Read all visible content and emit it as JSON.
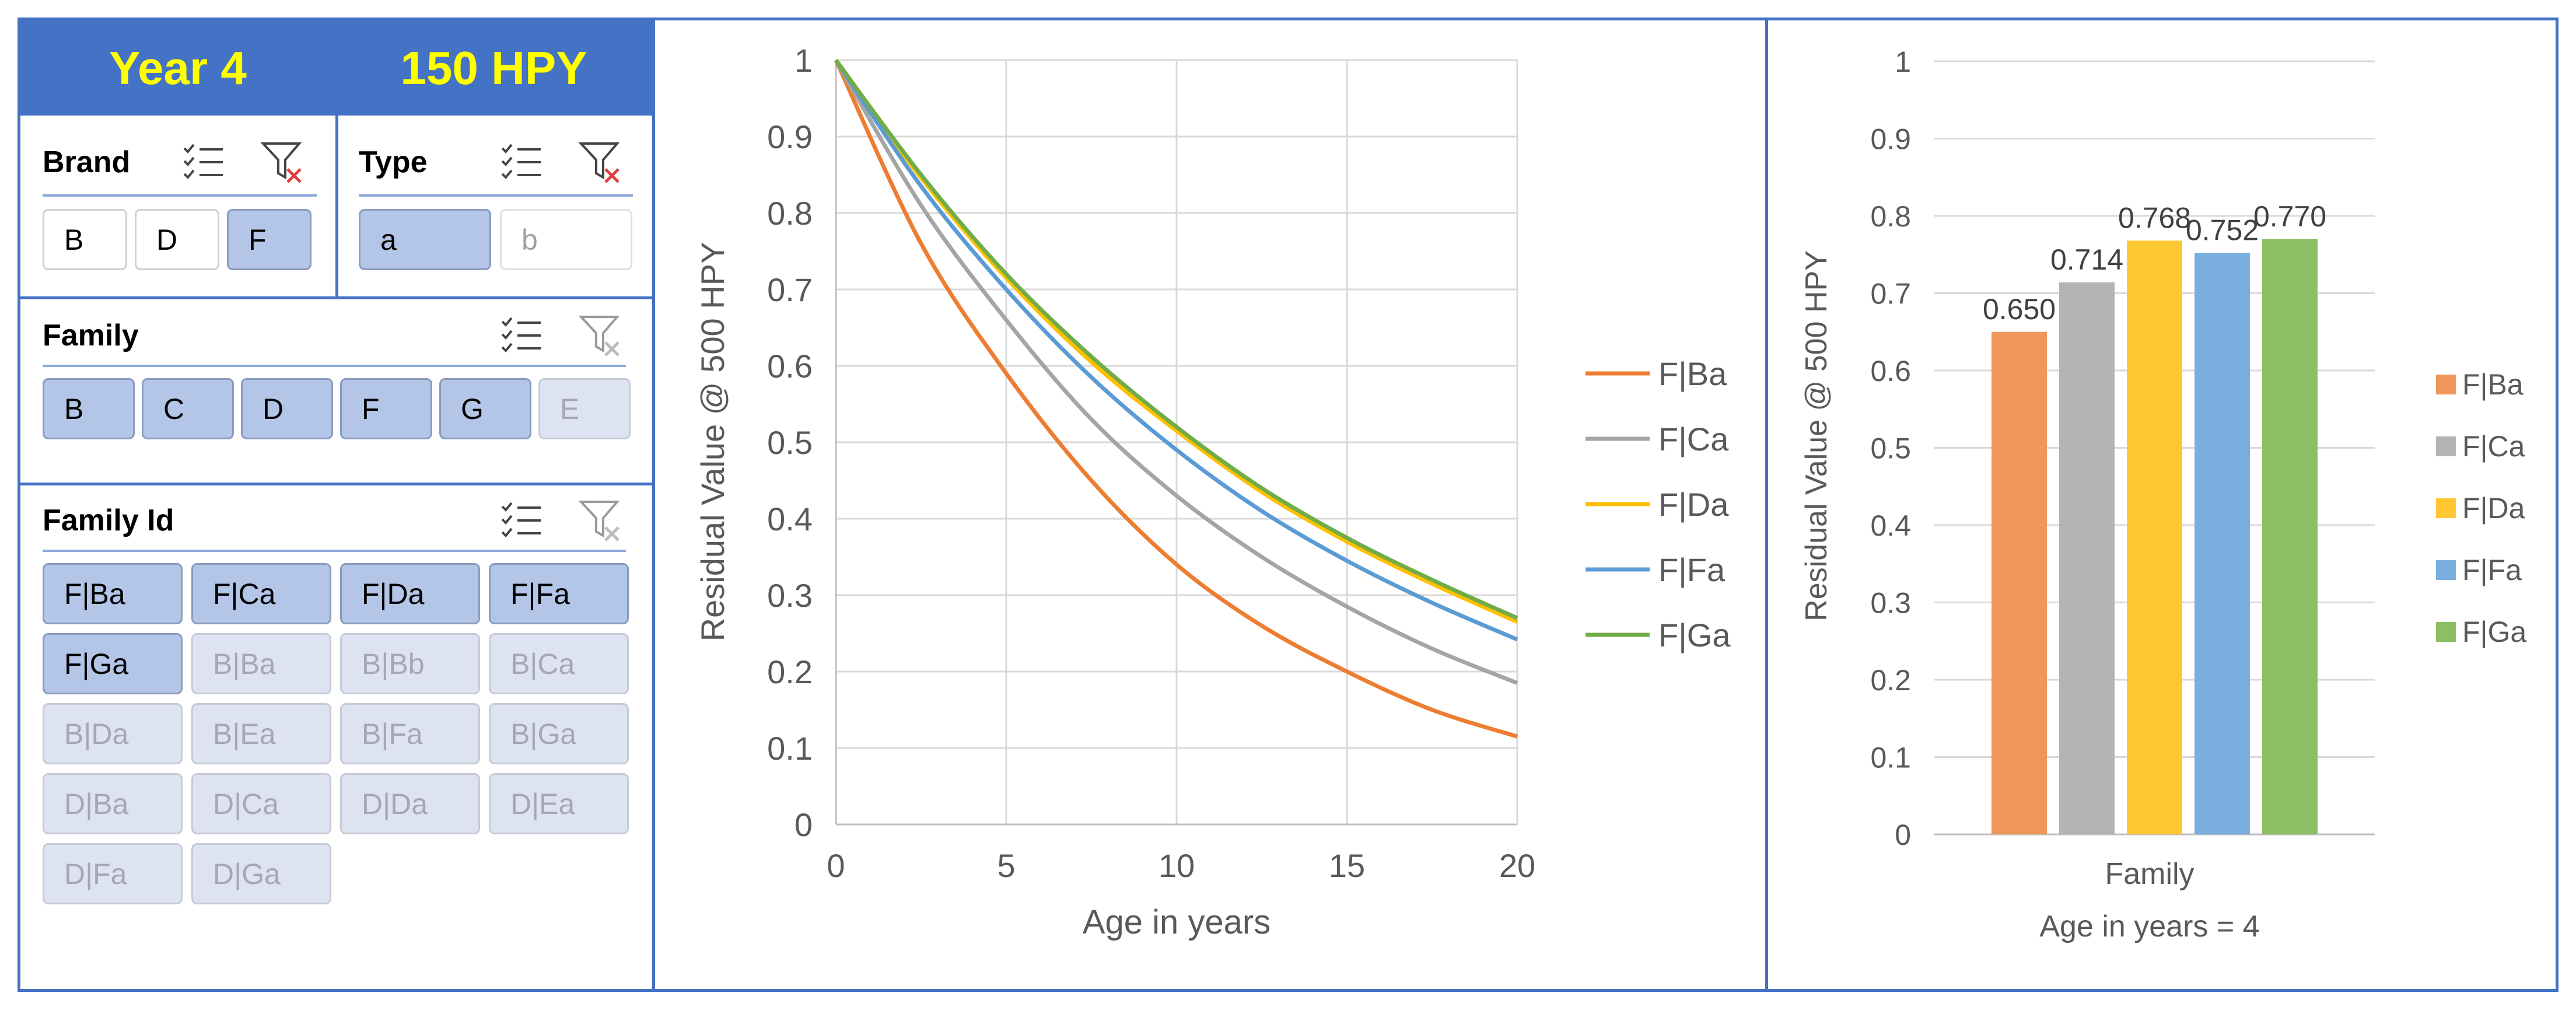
{
  "header": {
    "year_label": "Year 4",
    "hpy_label": "150 HPY"
  },
  "brand_slicer": {
    "title": "Brand",
    "items": [
      {
        "label": "B",
        "state": "unselected"
      },
      {
        "label": "D",
        "state": "unselected"
      },
      {
        "label": "F",
        "state": "selected"
      }
    ]
  },
  "type_slicer": {
    "title": "Type",
    "items": [
      {
        "label": "a",
        "state": "selected"
      },
      {
        "label": "b",
        "state": "disabled"
      }
    ]
  },
  "family_slicer": {
    "title": "Family",
    "items": [
      {
        "label": "B",
        "state": "selected"
      },
      {
        "label": "C",
        "state": "selected"
      },
      {
        "label": "D",
        "state": "selected"
      },
      {
        "label": "F",
        "state": "selected"
      },
      {
        "label": "G",
        "state": "selected"
      },
      {
        "label": "E",
        "state": "disabled"
      }
    ]
  },
  "family_id_slicer": {
    "title": "Family Id",
    "items": [
      {
        "label": "F|Ba",
        "state": "selected"
      },
      {
        "label": "F|Ca",
        "state": "selected"
      },
      {
        "label": "F|Da",
        "state": "selected"
      },
      {
        "label": "F|Fa",
        "state": "selected"
      },
      {
        "label": "F|Ga",
        "state": "selected"
      },
      {
        "label": "B|Ba",
        "state": "disabled"
      },
      {
        "label": "B|Bb",
        "state": "disabled"
      },
      {
        "label": "B|Ca",
        "state": "disabled"
      },
      {
        "label": "B|Da",
        "state": "disabled"
      },
      {
        "label": "B|Ea",
        "state": "disabled"
      },
      {
        "label": "B|Fa",
        "state": "disabled"
      },
      {
        "label": "B|Ga",
        "state": "disabled"
      },
      {
        "label": "D|Ba",
        "state": "disabled"
      },
      {
        "label": "D|Ca",
        "state": "disabled"
      },
      {
        "label": "D|Da",
        "state": "disabled"
      },
      {
        "label": "D|Ea",
        "state": "disabled"
      },
      {
        "label": "D|Fa",
        "state": "disabled"
      },
      {
        "label": "D|Ga",
        "state": "disabled"
      }
    ]
  },
  "icons": {
    "multi_select": "multi-select-icon",
    "clear_filter": "clear-filter-icon"
  },
  "colors": {
    "accent": "#4472c4",
    "header_text": "#ffff00",
    "F|Ba": "#ed7d31",
    "F|Ca": "#a5a5a5",
    "F|Da": "#ffc000",
    "F|Fa": "#5b9bd5",
    "F|Ga": "#70ad47",
    "bar_F|Ba": "#f0965a",
    "bar_F|Ca": "#b4b4b4",
    "bar_F|Da": "#ffc832",
    "bar_F|Fa": "#7aaede",
    "bar_F|Ga": "#8cbf64"
  },
  "chart_data": [
    {
      "type": "line",
      "title": "",
      "xlabel": "Age in years",
      "ylabel": "Residual Value @ 500 HPY",
      "xlim": [
        0,
        20
      ],
      "ylim": [
        0,
        1
      ],
      "x_ticks": [
        "0",
        "5",
        "10",
        "15",
        "20"
      ],
      "y_ticks": [
        "0",
        "0.1",
        "0.2",
        "0.3",
        "0.4",
        "0.5",
        "0.6",
        "0.7",
        "0.8",
        "0.9",
        "1"
      ],
      "grid": true,
      "legend": "right",
      "x": [
        0,
        2.5,
        5,
        7.5,
        10,
        12.5,
        15,
        17.5,
        20
      ],
      "series": [
        {
          "name": "F|Ba",
          "values": [
            1.0,
            0.76,
            0.59,
            0.45,
            0.34,
            0.26,
            0.2,
            0.15,
            0.115
          ]
        },
        {
          "name": "F|Ca",
          "values": [
            1.0,
            0.81,
            0.66,
            0.53,
            0.43,
            0.35,
            0.285,
            0.23,
            0.185
          ]
        },
        {
          "name": "F|Da",
          "values": [
            1.0,
            0.846,
            0.715,
            0.605,
            0.515,
            0.435,
            0.37,
            0.315,
            0.265
          ]
        },
        {
          "name": "F|Fa",
          "values": [
            1.0,
            0.835,
            0.7,
            0.585,
            0.49,
            0.41,
            0.345,
            0.29,
            0.242
          ]
        },
        {
          "name": "F|Ga",
          "values": [
            1.0,
            0.85,
            0.72,
            0.612,
            0.52,
            0.44,
            0.375,
            0.32,
            0.27
          ]
        }
      ]
    },
    {
      "type": "bar",
      "title": "",
      "xlabel": "Family",
      "subtitle": "Age in years = 4",
      "ylabel": "Residual Value @ 500 HPY",
      "ylim": [
        0,
        1
      ],
      "y_ticks": [
        "0",
        "0.1",
        "0.2",
        "0.3",
        "0.4",
        "0.5",
        "0.6",
        "0.7",
        "0.8",
        "0.9",
        "1"
      ],
      "grid": true,
      "legend": "right",
      "categories": [
        "Family"
      ],
      "series": [
        {
          "name": "F|Ba",
          "values": [
            0.65
          ],
          "label": "0.650"
        },
        {
          "name": "F|Ca",
          "values": [
            0.714
          ],
          "label": "0.714"
        },
        {
          "name": "F|Da",
          "values": [
            0.768
          ],
          "label": "0.768"
        },
        {
          "name": "F|Fa",
          "values": [
            0.752
          ],
          "label": "0.752"
        },
        {
          "name": "F|Ga",
          "values": [
            0.77
          ],
          "label": "0.770"
        }
      ]
    }
  ]
}
